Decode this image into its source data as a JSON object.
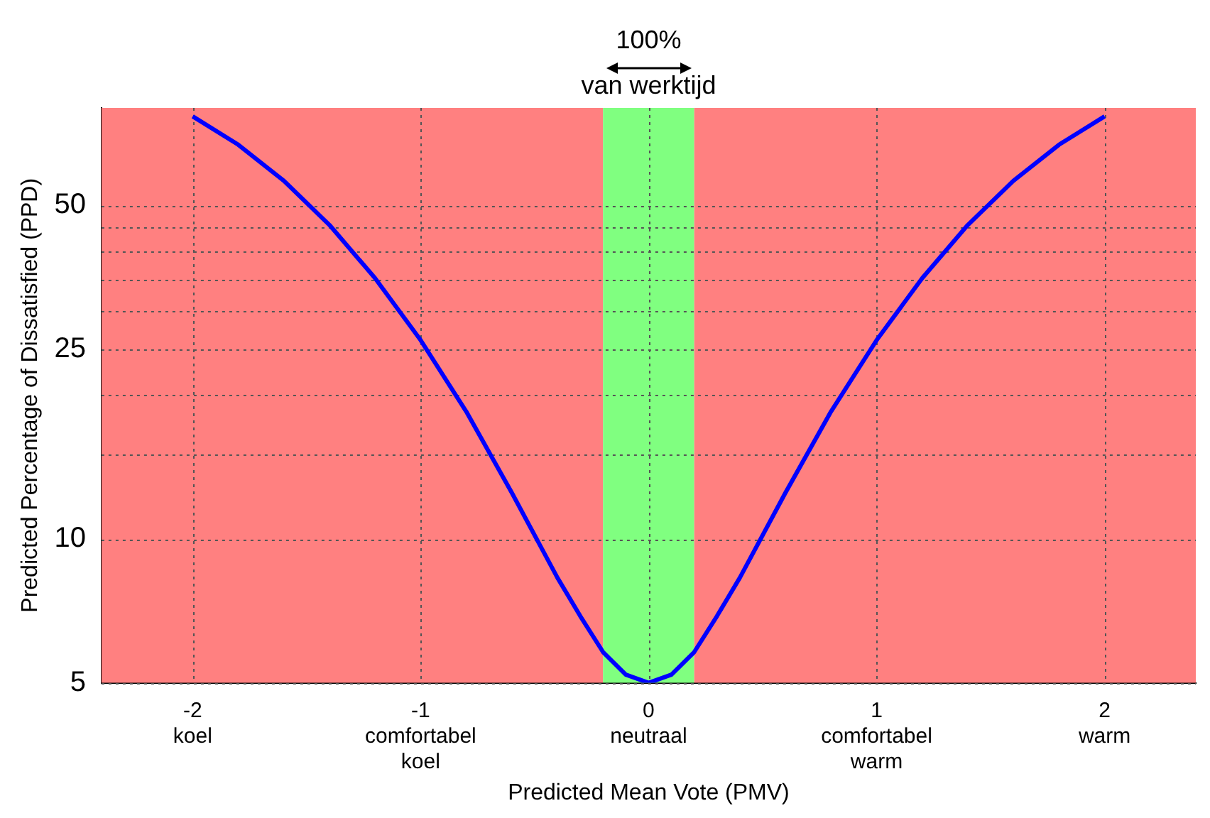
{
  "chart_data": {
    "type": "line",
    "xlabel": "Predicted Mean Vote (PMV)",
    "ylabel": "Predicted Percentage of Dissatisfied (PPD)",
    "annotations": [
      "100%",
      "van werktijd"
    ],
    "series": [
      {
        "color": "#0000ff",
        "x": [
          -2,
          -1.8,
          -1.6,
          -1.4,
          -1.2,
          -1,
          -0.8,
          -0.6,
          -0.4,
          -0.3,
          -0.2,
          -0.1,
          0,
          0.1,
          0.2,
          0.3,
          0.4,
          0.6,
          0.8,
          1,
          1.2,
          1.4,
          1.6,
          1.8,
          2
        ],
        "values": [
          76.8,
          67.0,
          56.3,
          45.5,
          35.2,
          26.1,
          18.5,
          12.5,
          8.3,
          6.9,
          5.8,
          5.2,
          5.0,
          5.2,
          5.8,
          6.9,
          8.3,
          12.5,
          18.5,
          26.1,
          35.2,
          45.5,
          56.3,
          67.0,
          76.8
        ]
      }
    ],
    "xlim": [
      -2.4,
      2.4
    ],
    "xticks": [
      {
        "value": -2,
        "label": "-2\nkoel"
      },
      {
        "value": -1,
        "label": "-1\ncomfortabel\nkoel"
      },
      {
        "value": 0,
        "label": "0\nneutraal"
      },
      {
        "value": 1,
        "label": "1\ncomfortabel\nwarm"
      },
      {
        "value": 2,
        "label": "2\nwarm"
      }
    ],
    "ylim": [
      5,
      80
    ],
    "yticks": [
      5,
      10,
      {
        "value": 15,
        "label": null
      },
      {
        "value": 20,
        "label": null
      },
      25,
      {
        "value": 30,
        "label": null
      },
      {
        "value": 35,
        "label": null
      },
      {
        "value": 40,
        "label": null
      },
      {
        "value": 45,
        "label": null
      },
      50
    ],
    "log": "y",
    "bands": [
      {
        "axis": "x",
        "from": -2.4,
        "to": -0.2,
        "color": "#ff8080"
      },
      {
        "axis": "x",
        "from": -0.2,
        "to": 0.2,
        "color": "#80ff80"
      },
      {
        "axis": "x",
        "from": 0.2,
        "to": 2.4,
        "color": "#ff8080"
      }
    ],
    "grid": true,
    "legend": false,
    "marker": "none",
    "line_style": "solid"
  }
}
